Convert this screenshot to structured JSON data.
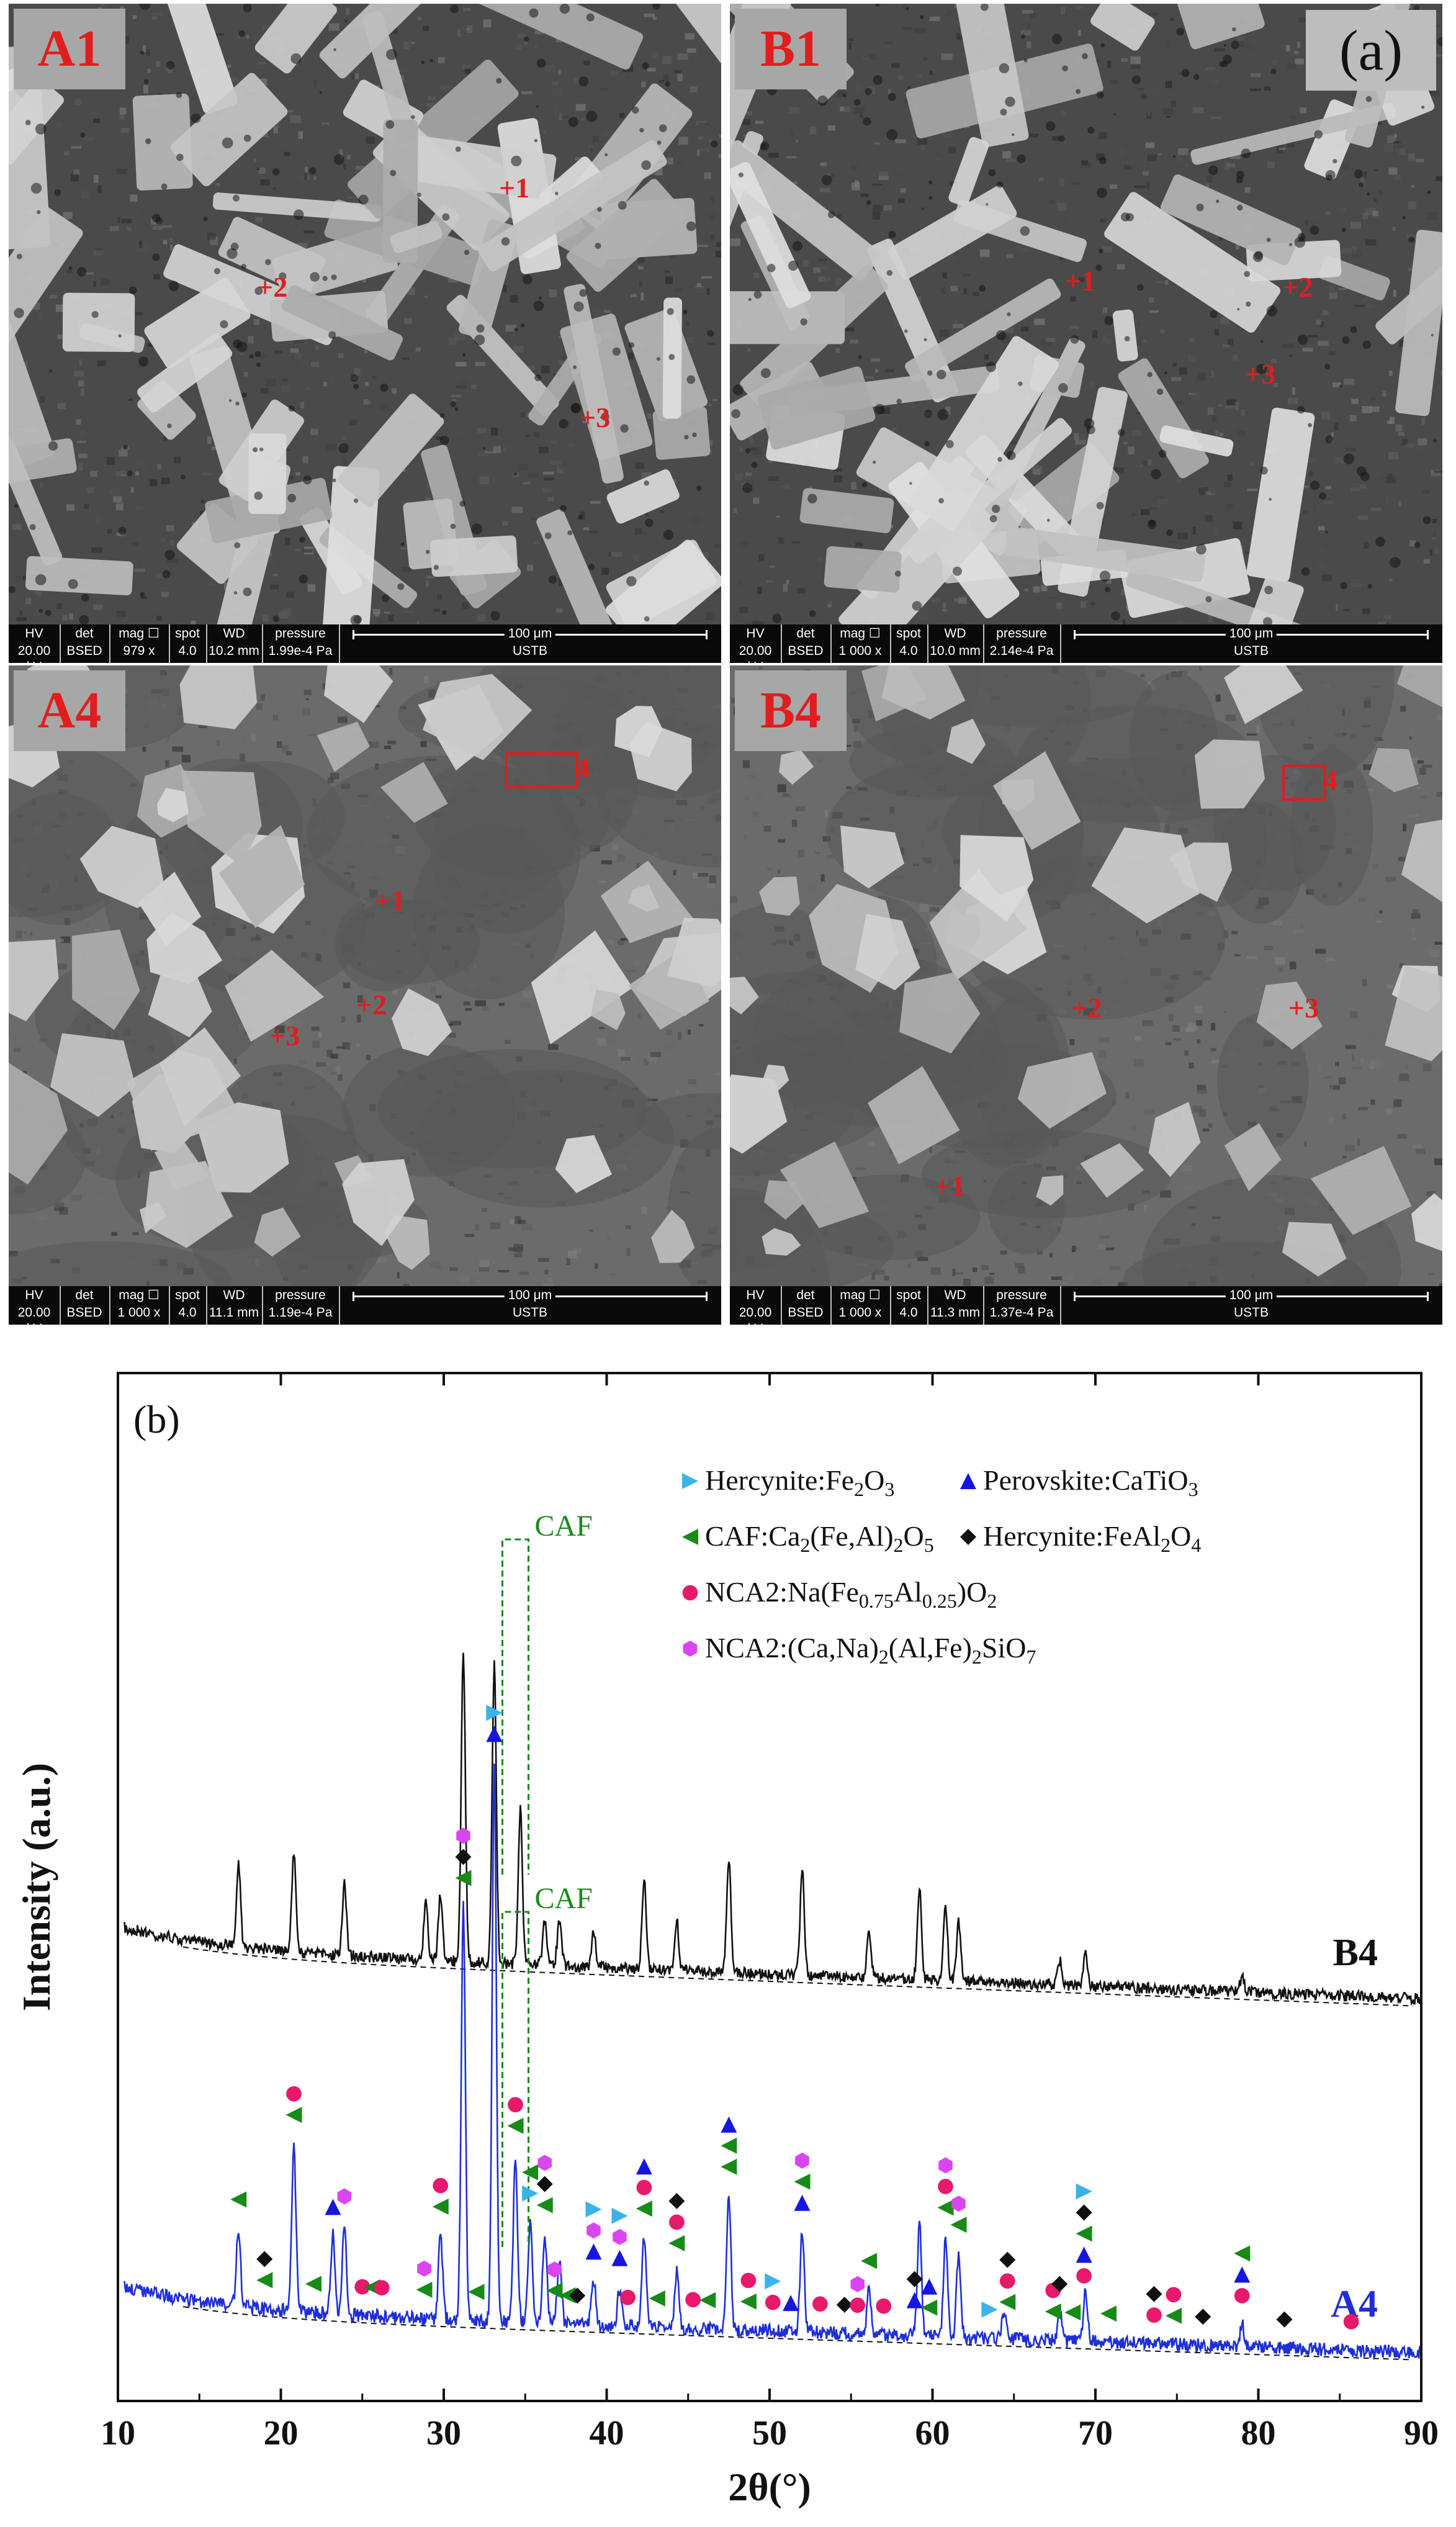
{
  "figure": {
    "part_a_label": "(a)",
    "part_b_label": "(b)"
  },
  "sem_panels": [
    {
      "tag": "A1",
      "spots": [
        "+1",
        "+2",
        "+3"
      ],
      "databar": {
        "labels": [
          "HV",
          "det",
          "mag ☐",
          "spot",
          "WD",
          "pressure"
        ],
        "values": [
          "20.00 kV",
          "BSED",
          "979 x",
          "4.0",
          "10.2 mm",
          "1.99e-4 Pa"
        ],
        "scale_text": "100 μm",
        "institution": "USTB"
      }
    },
    {
      "tag": "B1",
      "spots": [
        "+1",
        "+2",
        "+3"
      ],
      "databar": {
        "labels": [
          "HV",
          "det",
          "mag ☐",
          "spot",
          "WD",
          "pressure"
        ],
        "values": [
          "20.00 kV",
          "BSED",
          "1 000 x",
          "4.0",
          "10.0 mm",
          "2.14e-4 Pa"
        ],
        "scale_text": "100 μm",
        "institution": "USTB"
      }
    },
    {
      "tag": "A4",
      "spots": [
        "+1",
        "+2",
        "+3",
        "4"
      ],
      "databar": {
        "labels": [
          "HV",
          "det",
          "mag ☐",
          "spot",
          "WD",
          "pressure"
        ],
        "values": [
          "20.00 kV",
          "BSED",
          "1 000 x",
          "4.0",
          "11.1 mm",
          "1.19e-4 Pa"
        ],
        "scale_text": "100 μm",
        "institution": "USTB"
      }
    },
    {
      "tag": "B4",
      "spots": [
        "+1",
        "+2",
        "+3",
        "4"
      ],
      "databar": {
        "labels": [
          "HV",
          "det",
          "mag ☐",
          "spot",
          "WD",
          "pressure"
        ],
        "values": [
          "20.00 kV",
          "BSED",
          "1 000 x",
          "4.0",
          "11.3 mm",
          "1.37e-4 Pa"
        ],
        "scale_text": "100 μm",
        "institution": "USTB"
      }
    }
  ],
  "chart_data": {
    "type": "line",
    "title": "",
    "xlabel": "2θ(°)",
    "ylabel": "Intensity (a.u.)",
    "xlim": [
      10,
      90
    ],
    "xticks": [
      "10",
      "20",
      "30",
      "40",
      "50",
      "60",
      "70",
      "80",
      "90"
    ],
    "yticks_shown": false,
    "colors": {
      "B4": "#111111",
      "A4": "#1f2fd6",
      "baseline": "#111111",
      "caf_box": "#1a8a1a"
    },
    "series": [
      {
        "name": "B4",
        "peaks": [
          {
            "x": 17.4,
            "h": 0.27
          },
          {
            "x": 20.8,
            "h": 0.32
          },
          {
            "x": 23.9,
            "h": 0.23
          },
          {
            "x": 28.9,
            "h": 0.18
          },
          {
            "x": 29.8,
            "h": 0.21
          },
          {
            "x": 31.2,
            "h": 1.0
          },
          {
            "x": 33.1,
            "h": 0.96
          },
          {
            "x": 34.7,
            "h": 0.5
          },
          {
            "x": 36.2,
            "h": 0.14
          },
          {
            "x": 37.1,
            "h": 0.15
          },
          {
            "x": 39.2,
            "h": 0.12
          },
          {
            "x": 42.3,
            "h": 0.3
          },
          {
            "x": 44.3,
            "h": 0.16
          },
          {
            "x": 47.5,
            "h": 0.37
          },
          {
            "x": 52.0,
            "h": 0.34
          },
          {
            "x": 56.1,
            "h": 0.14
          },
          {
            "x": 59.2,
            "h": 0.3
          },
          {
            "x": 60.8,
            "h": 0.24
          },
          {
            "x": 61.6,
            "h": 0.19
          },
          {
            "x": 67.8,
            "h": 0.08
          },
          {
            "x": 69.4,
            "h": 0.1
          },
          {
            "x": 79.0,
            "h": 0.05
          }
        ]
      },
      {
        "name": "A4",
        "peaks": [
          {
            "x": 17.4,
            "h": 0.14
          },
          {
            "x": 20.8,
            "h": 0.3
          },
          {
            "x": 23.2,
            "h": 0.14
          },
          {
            "x": 23.9,
            "h": 0.16
          },
          {
            "x": 29.8,
            "h": 0.15
          },
          {
            "x": 31.2,
            "h": 0.74
          },
          {
            "x": 33.1,
            "h": 1.0
          },
          {
            "x": 34.4,
            "h": 0.3
          },
          {
            "x": 35.3,
            "h": 0.18
          },
          {
            "x": 36.2,
            "h": 0.16
          },
          {
            "x": 37.1,
            "h": 0.12
          },
          {
            "x": 39.2,
            "h": 0.08
          },
          {
            "x": 40.8,
            "h": 0.07
          },
          {
            "x": 42.3,
            "h": 0.16
          },
          {
            "x": 44.3,
            "h": 0.1
          },
          {
            "x": 47.5,
            "h": 0.24
          },
          {
            "x": 52.0,
            "h": 0.18
          },
          {
            "x": 56.1,
            "h": 0.08
          },
          {
            "x": 59.2,
            "h": 0.2
          },
          {
            "x": 60.8,
            "h": 0.18
          },
          {
            "x": 61.6,
            "h": 0.15
          },
          {
            "x": 64.4,
            "h": 0.05
          },
          {
            "x": 67.8,
            "h": 0.05
          },
          {
            "x": 69.4,
            "h": 0.09
          },
          {
            "x": 79.0,
            "h": 0.04
          }
        ]
      }
    ],
    "curve_labels": [
      {
        "text": "B4",
        "color": "#111111"
      },
      {
        "text": "A4",
        "color": "#1f2fd6"
      }
    ],
    "caf_annotations": [
      {
        "text": "CAF",
        "curve": "B4",
        "x_range": [
          33.6,
          35.2
        ]
      },
      {
        "text": "CAF",
        "curve": "A4",
        "x_range": [
          33.6,
          35.2
        ]
      }
    ],
    "legend_position": "top-right",
    "legend": [
      {
        "marker": "tri-right",
        "color": "#3ab3ea",
        "parts": [
          [
            "Hercynite:Fe",
            "n"
          ],
          [
            "2",
            "sub"
          ],
          [
            "O",
            "n"
          ],
          [
            "3",
            "sub"
          ]
        ]
      },
      {
        "marker": "tri-up",
        "color": "#1616e0",
        "parts": [
          [
            "Perovskite:CaTiO",
            "n"
          ],
          [
            "3",
            "sub"
          ]
        ]
      },
      {
        "marker": "tri-left",
        "color": "#178a17",
        "parts": [
          [
            "CAF:Ca",
            "n"
          ],
          [
            "2",
            "sub"
          ],
          [
            "(Fe,Al)",
            "n"
          ],
          [
            "2",
            "sub"
          ],
          [
            "O",
            "n"
          ],
          [
            "5",
            "sub"
          ]
        ]
      },
      {
        "marker": "diamond",
        "color": "#111111",
        "parts": [
          [
            "Hercynite:FeAl",
            "n"
          ],
          [
            "2",
            "sub"
          ],
          [
            "O",
            "n"
          ],
          [
            "4",
            "sub"
          ]
        ]
      },
      {
        "marker": "circle",
        "color": "#e8186d",
        "parts": [
          [
            "NCA2:Na(Fe",
            "n"
          ],
          [
            "0.75",
            "sub"
          ],
          [
            "Al",
            "n"
          ],
          [
            "0.25",
            "sub"
          ],
          [
            ")O",
            "n"
          ],
          [
            "2",
            "sub"
          ]
        ]
      },
      {
        "marker": "hexagon",
        "color": "#d946ef",
        "parts": [
          [
            "NCA2:(Ca,Na)",
            "n"
          ],
          [
            "2",
            "sub"
          ],
          [
            "(Al,Fe)",
            "n"
          ],
          [
            "2",
            "sub"
          ],
          [
            "SiO",
            "n"
          ],
          [
            "7",
            "sub"
          ]
        ]
      }
    ],
    "phase_markers_A4": [
      {
        "x": 17.4,
        "phases": [
          "tri-left"
        ]
      },
      {
        "x": 19.0,
        "phases": [
          "diamond",
          "tri-left"
        ]
      },
      {
        "x": 20.8,
        "phases": [
          "circle",
          "tri-left"
        ]
      },
      {
        "x": 22.0,
        "phases": [
          "tri-left"
        ]
      },
      {
        "x": 23.2,
        "phases": [
          "tri-up"
        ]
      },
      {
        "x": 23.9,
        "phases": [
          "hexagon"
        ]
      },
      {
        "x": 25.0,
        "phases": [
          "circle"
        ]
      },
      {
        "x": 25.6,
        "phases": [
          "tri-left"
        ]
      },
      {
        "x": 26.2,
        "phases": [
          "circle"
        ]
      },
      {
        "x": 28.8,
        "phases": [
          "hexagon",
          "tri-left"
        ]
      },
      {
        "x": 29.8,
        "phases": [
          "circle",
          "tri-left"
        ]
      },
      {
        "x": 31.2,
        "phases": [
          "hexagon",
          "diamond",
          "tri-left"
        ]
      },
      {
        "x": 32.0,
        "phases": [
          "tri-left"
        ]
      },
      {
        "x": 33.1,
        "phases": [
          "tri-right",
          "tri-up"
        ]
      },
      {
        "x": 34.4,
        "phases": [
          "circle",
          "tri-left"
        ]
      },
      {
        "x": 35.3,
        "phases": [
          "tri-left",
          "tri-right"
        ]
      },
      {
        "x": 36.2,
        "phases": [
          "hexagon",
          "diamond",
          "tri-left"
        ]
      },
      {
        "x": 36.8,
        "phases": [
          "hexagon",
          "tri-left"
        ]
      },
      {
        "x": 37.6,
        "phases": [
          "tri-left"
        ]
      },
      {
        "x": 38.2,
        "phases": [
          "diamond"
        ]
      },
      {
        "x": 39.2,
        "phases": [
          "tri-right",
          "hexagon",
          "tri-up"
        ]
      },
      {
        "x": 40.8,
        "phases": [
          "tri-right",
          "hexagon",
          "tri-up"
        ]
      },
      {
        "x": 41.3,
        "phases": [
          "circle"
        ]
      },
      {
        "x": 42.3,
        "phases": [
          "tri-up",
          "circle",
          "tri-left"
        ]
      },
      {
        "x": 43.1,
        "phases": [
          "tri-left"
        ]
      },
      {
        "x": 44.3,
        "phases": [
          "diamond",
          "circle",
          "tri-left"
        ]
      },
      {
        "x": 45.3,
        "phases": [
          "circle"
        ]
      },
      {
        "x": 46.2,
        "phases": [
          "tri-left"
        ]
      },
      {
        "x": 47.5,
        "phases": [
          "tri-up",
          "tri-left",
          "tri-left"
        ]
      },
      {
        "x": 48.7,
        "phases": [
          "circle",
          "tri-left"
        ]
      },
      {
        "x": 50.2,
        "phases": [
          "tri-right",
          "circle"
        ]
      },
      {
        "x": 51.3,
        "phases": [
          "tri-up"
        ]
      },
      {
        "x": 52.0,
        "phases": [
          "hexagon",
          "tri-left",
          "tri-up"
        ]
      },
      {
        "x": 53.1,
        "phases": [
          "circle"
        ]
      },
      {
        "x": 54.6,
        "phases": [
          "diamond"
        ]
      },
      {
        "x": 55.4,
        "phases": [
          "hexagon",
          "circle"
        ]
      },
      {
        "x": 56.1,
        "phases": [
          "tri-left"
        ]
      },
      {
        "x": 57.0,
        "phases": [
          "circle"
        ]
      },
      {
        "x": 58.9,
        "phases": [
          "diamond",
          "tri-up"
        ]
      },
      {
        "x": 59.8,
        "phases": [
          "tri-up",
          "tri-left"
        ]
      },
      {
        "x": 60.8,
        "phases": [
          "hexagon",
          "circle",
          "tri-left"
        ]
      },
      {
        "x": 61.6,
        "phases": [
          "hexagon",
          "tri-left"
        ]
      },
      {
        "x": 63.5,
        "phases": [
          "tri-right"
        ]
      },
      {
        "x": 64.6,
        "phases": [
          "diamond",
          "circle",
          "tri-left"
        ]
      },
      {
        "x": 67.4,
        "phases": [
          "circle",
          "tri-left"
        ]
      },
      {
        "x": 67.8,
        "phases": [
          "diamond"
        ]
      },
      {
        "x": 68.6,
        "phases": [
          "tri-left"
        ]
      },
      {
        "x": 69.3,
        "phases": [
          "tri-right",
          "diamond",
          "tri-left",
          "tri-up",
          "circle"
        ]
      },
      {
        "x": 70.8,
        "phases": [
          "tri-left"
        ]
      },
      {
        "x": 73.6,
        "phases": [
          "diamond",
          "circle"
        ]
      },
      {
        "x": 74.8,
        "phases": [
          "circle",
          "tri-left"
        ]
      },
      {
        "x": 76.6,
        "phases": [
          "diamond"
        ]
      },
      {
        "x": 79.0,
        "phases": [
          "tri-left",
          "tri-up",
          "circle"
        ]
      },
      {
        "x": 81.6,
        "phases": [
          "diamond"
        ]
      },
      {
        "x": 85.7,
        "phases": [
          "circle"
        ]
      }
    ]
  }
}
